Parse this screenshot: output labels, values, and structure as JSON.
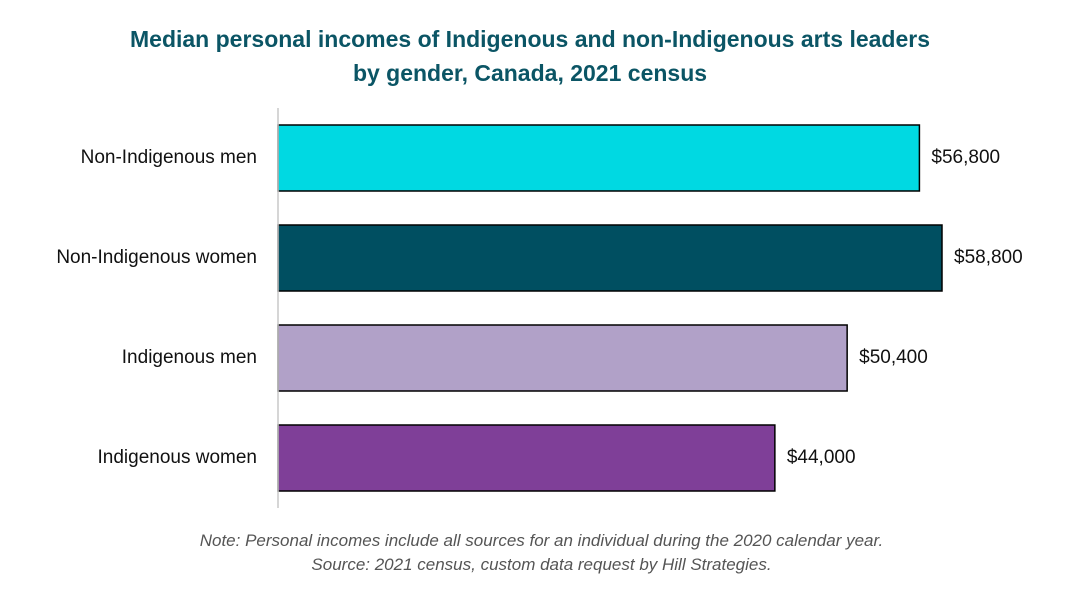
{
  "chart_data": {
    "type": "bar",
    "orientation": "horizontal",
    "title": "Median personal incomes of Indigenous and non-Indigenous arts leaders by gender, Canada, 2021 census",
    "categories": [
      "Non-Indigenous men",
      "Non-Indigenous women",
      "Indigenous men",
      "Indigenous women"
    ],
    "values": [
      56800,
      58800,
      50400,
      44000
    ],
    "value_labels": [
      "$56,800",
      "$58,800",
      "$50,400",
      "$44,000"
    ],
    "colors": [
      "#00d9e2",
      "#004f61",
      "#b1a1c8",
      "#7f3f98"
    ],
    "notes": [
      "Note: Personal incomes include all sources for an individual during the 2020 calendar year.",
      "Source: 2021 census, custom data request by Hill Strategies."
    ]
  }
}
